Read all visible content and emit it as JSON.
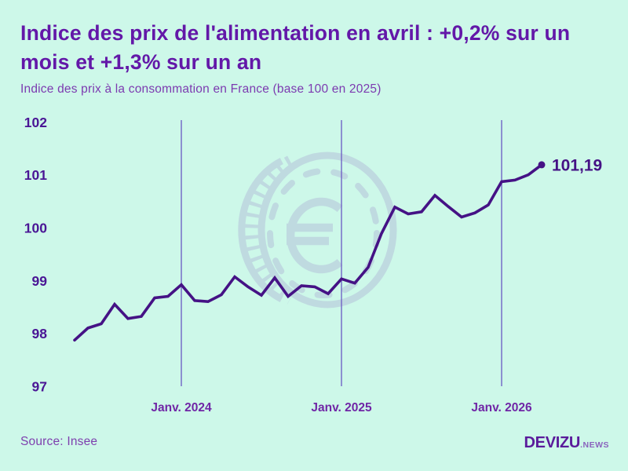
{
  "header": {
    "title": "Indice des prix de l'alimentation en avril : +0,2% sur un mois et +1,3% sur un an",
    "title_line1": "Indice des prix de l'alimentation en avril : +0,2% sur un",
    "title_line2": "mois et +1,3% sur un an",
    "subtitle": "Indice des prix à la consommation en France (base 100 en 2025)"
  },
  "footer": {
    "source": "Source: Insee",
    "brand": "DEVIZU",
    "brand_suffix": ".NEWS"
  },
  "colors": {
    "background": "#cdf8e9",
    "title": "#6318a8",
    "subtitle": "#7c3ab0",
    "line": "#451285",
    "y_axis_labels": "#4a1695",
    "x_axis_labels": "#7026a6",
    "gridline": "#7063c5",
    "watermark": "#b5c2da",
    "source_text": "#7e3fae",
    "brand_text": "#5a1b9b"
  },
  "chart_data": {
    "type": "line",
    "title": "Indice des prix de l'alimentation en avril : +0,2% sur un mois et +1,3% sur un an",
    "subtitle": "Indice des prix à la consommation en France (base 100 en 2025)",
    "x": [
      "2023-05",
      "2023-06",
      "2023-07",
      "2023-08",
      "2023-09",
      "2023-10",
      "2023-11",
      "2023-12",
      "2024-01",
      "2024-02",
      "2024-03",
      "2024-04",
      "2024-05",
      "2024-06",
      "2024-07",
      "2024-08",
      "2024-09",
      "2024-10",
      "2024-11",
      "2024-12",
      "2025-01",
      "2025-02",
      "2025-03",
      "2025-04",
      "2025-05",
      "2025-06",
      "2025-07",
      "2025-08",
      "2025-09",
      "2025-10",
      "2025-11",
      "2025-12",
      "2026-01",
      "2026-02",
      "2026-03",
      "2026-04"
    ],
    "series": [
      {
        "name": "Indice des prix de l'alimentation (base 100 en 2025)",
        "values": [
          97.87,
          98.1,
          98.18,
          98.55,
          98.28,
          98.32,
          98.67,
          98.7,
          98.92,
          98.62,
          98.6,
          98.73,
          99.07,
          98.88,
          98.72,
          99.05,
          98.7,
          98.9,
          98.88,
          98.75,
          99.03,
          98.95,
          99.25,
          99.89,
          100.39,
          100.26,
          100.3,
          100.61,
          100.4,
          100.2,
          100.28,
          100.43,
          100.87,
          100.9,
          101.0,
          101.19
        ]
      }
    ],
    "y_ticks": [
      102,
      101,
      100,
      99,
      98,
      97
    ],
    "ylim": [
      97,
      102
    ],
    "x_gridlines": [
      {
        "label": "Janv. 2024",
        "month_index": 8
      },
      {
        "label": "Janv. 2025",
        "month_index": 20
      },
      {
        "label": "Janv. 2026",
        "month_index": 32
      }
    ],
    "end_label": "101,19",
    "last_value": 101.19,
    "legend": "none",
    "grid": "vertical-only",
    "watermark": "euro-coin"
  }
}
